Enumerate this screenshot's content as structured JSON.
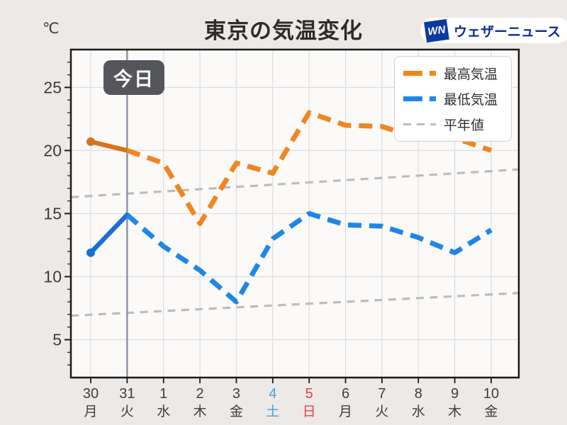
{
  "page": {
    "bg_color": "#ece9e6",
    "plot_bg_color": "#fbfaf9"
  },
  "header": {
    "unit": "℃",
    "title": "東京の気温変化",
    "logo_mark": "WN",
    "brand": "ウェザーニュース",
    "logo_blue": "#0c3aa0",
    "brand_text_color": "#0a2a96"
  },
  "legend": {
    "items": [
      {
        "label": "最高気温",
        "color": "#f0861e",
        "style": "thick-dash"
      },
      {
        "label": "最低気温",
        "color": "#1f86e8",
        "style": "thick-dash"
      },
      {
        "label": "平年値",
        "color": "#bcbcbc",
        "style": "thin-dash"
      }
    ]
  },
  "chart_data": {
    "type": "line",
    "title": "東京の気温変化",
    "ylabel": "℃",
    "ylim": [
      2,
      28
    ],
    "yticks": [
      5,
      10,
      15,
      20,
      25
    ],
    "grid": true,
    "legend_position": "top-right",
    "today_label": "今日",
    "today_index": 1,
    "today_line_color": "#8c95a3",
    "grid_color": "#dedede",
    "axis_color": "#1a1a1a",
    "label_color": "#3a3a3a",
    "x_labels": [
      {
        "date": "30",
        "dow": "月",
        "color": "#3f3f3f"
      },
      {
        "date": "31",
        "dow": "火",
        "color": "#3f3f3f"
      },
      {
        "date": "1",
        "dow": "水",
        "color": "#3f3f3f"
      },
      {
        "date": "2",
        "dow": "木",
        "color": "#3f3f3f"
      },
      {
        "date": "3",
        "dow": "金",
        "color": "#3f3f3f"
      },
      {
        "date": "4",
        "dow": "土",
        "color": "#44a0e8"
      },
      {
        "date": "5",
        "dow": "日",
        "color": "#e04343"
      },
      {
        "date": "6",
        "dow": "月",
        "color": "#3f3f3f"
      },
      {
        "date": "7",
        "dow": "火",
        "color": "#3f3f3f"
      },
      {
        "date": "8",
        "dow": "水",
        "color": "#3f3f3f"
      },
      {
        "date": "9",
        "dow": "木",
        "color": "#3f3f3f"
      },
      {
        "date": "10",
        "dow": "金",
        "color": "#3f3f3f"
      }
    ],
    "series": [
      {
        "name": "最高気温",
        "values": [
          20.7,
          20,
          19,
          14.2,
          19,
          18.2,
          23,
          22,
          21.9,
          21,
          21,
          20
        ],
        "color": "#f0861e",
        "color_solid": "#d8731b",
        "dashed_from_index": 1,
        "marker_at_index": 0
      },
      {
        "name": "最低気温",
        "values": [
          11.9,
          14.9,
          12.4,
          10.5,
          8,
          13,
          15,
          14.1,
          14,
          13.1,
          11.9,
          13.7
        ],
        "color": "#1f86e8",
        "color_solid": "#1a6fd0",
        "dashed_from_index": 1,
        "marker_at_index": 0
      }
    ],
    "normals": [
      {
        "name": "平年値(最高)",
        "edge_values": [
          16.3,
          18.5
        ],
        "color": "#bcbcbc"
      },
      {
        "name": "平年値(最低)",
        "edge_values": [
          6.9,
          8.7
        ],
        "color": "#bcbcbc"
      }
    ]
  }
}
